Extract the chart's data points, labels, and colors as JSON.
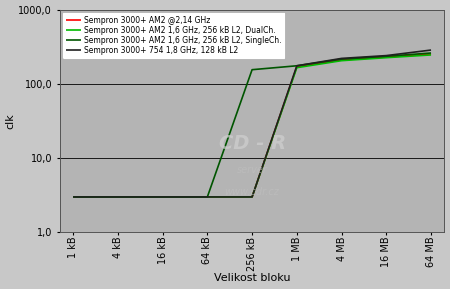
{
  "title": "",
  "xlabel": "Velikost bloku",
  "ylabel": "clk",
  "background_color": "#c8c8c8",
  "plot_bg_color": "#b4b4b4",
  "legend_bg": "#ffffff",
  "x_labels": [
    "1 kB",
    "4 kB",
    "16 kB",
    "64 kB",
    "256 kB",
    "1 MB",
    "4 MB",
    "16 MB",
    "64 MB"
  ],
  "series": [
    {
      "label": "Sempron 3000+ AM2 @2,14 GHz",
      "color": "#ff0000",
      "linewidth": 1.2,
      "y": [
        3.0,
        3.0,
        3.0,
        3.0,
        3.0,
        170.0,
        210.0,
        230.0,
        250.0
      ]
    },
    {
      "label": "Sempron 3000+ AM2 1,6 GHz, 256 kB L2, DualCh.",
      "color": "#00bb00",
      "linewidth": 1.2,
      "y": [
        3.0,
        3.0,
        3.0,
        3.0,
        3.0,
        165.0,
        205.0,
        225.0,
        245.0
      ]
    },
    {
      "label": "Sempron 3000+ AM2 1,6 GHz, 256 kB L2, SingleCh.",
      "color": "#005500",
      "linewidth": 1.2,
      "y": [
        3.0,
        3.0,
        3.0,
        3.0,
        155.0,
        175.0,
        215.0,
        235.0,
        260.0
      ]
    },
    {
      "label": "Sempron 3000+ 754 1,8 GHz, 128 kB L2",
      "color": "#202020",
      "linewidth": 1.2,
      "y": [
        3.0,
        3.0,
        3.0,
        3.0,
        3.0,
        175.0,
        220.0,
        240.0,
        285.0
      ]
    }
  ],
  "ylim": [
    1.0,
    1000.0
  ],
  "yticks": [
    1.0,
    10.0,
    100.0,
    1000.0
  ],
  "ytick_labels": [
    "1,0",
    "10,0",
    "100,0",
    "1000,0"
  ],
  "watermark1": "CD - R",
  "watermark2": "server",
  "watermark3": "www.cdr.cz"
}
